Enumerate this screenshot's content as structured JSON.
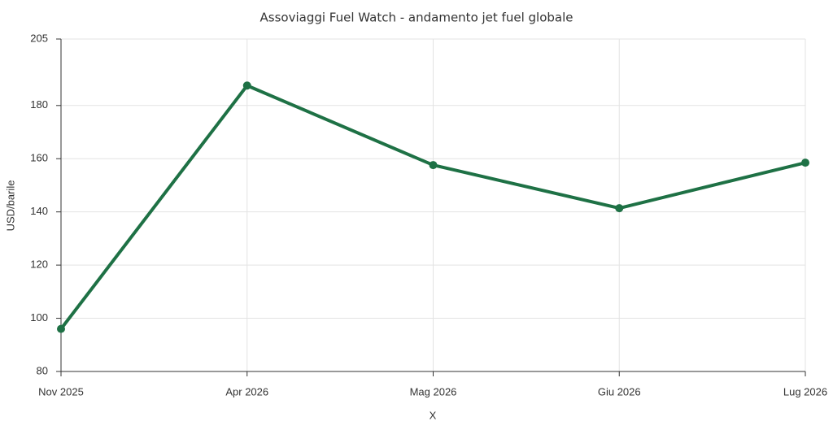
{
  "chart_data": {
    "type": "line",
    "title": "Assoviaggi Fuel Watch - andamento jet fuel globale",
    "x_label": "X",
    "y_label": "USD/barile",
    "categories": [
      "Nov 2025",
      "Apr 2026",
      "Mag 2026",
      "Giu 2026",
      "Lug 2026"
    ],
    "series": [
      {
        "name": "Jet fuel",
        "color": "#1e7145",
        "values": [
          96,
          187.5,
          157.6,
          141.4,
          158.5
        ]
      }
    ],
    "ylim": [
      80,
      205
    ],
    "yticks": [
      80,
      100,
      120,
      140,
      160,
      180,
      205
    ],
    "grid": true
  }
}
